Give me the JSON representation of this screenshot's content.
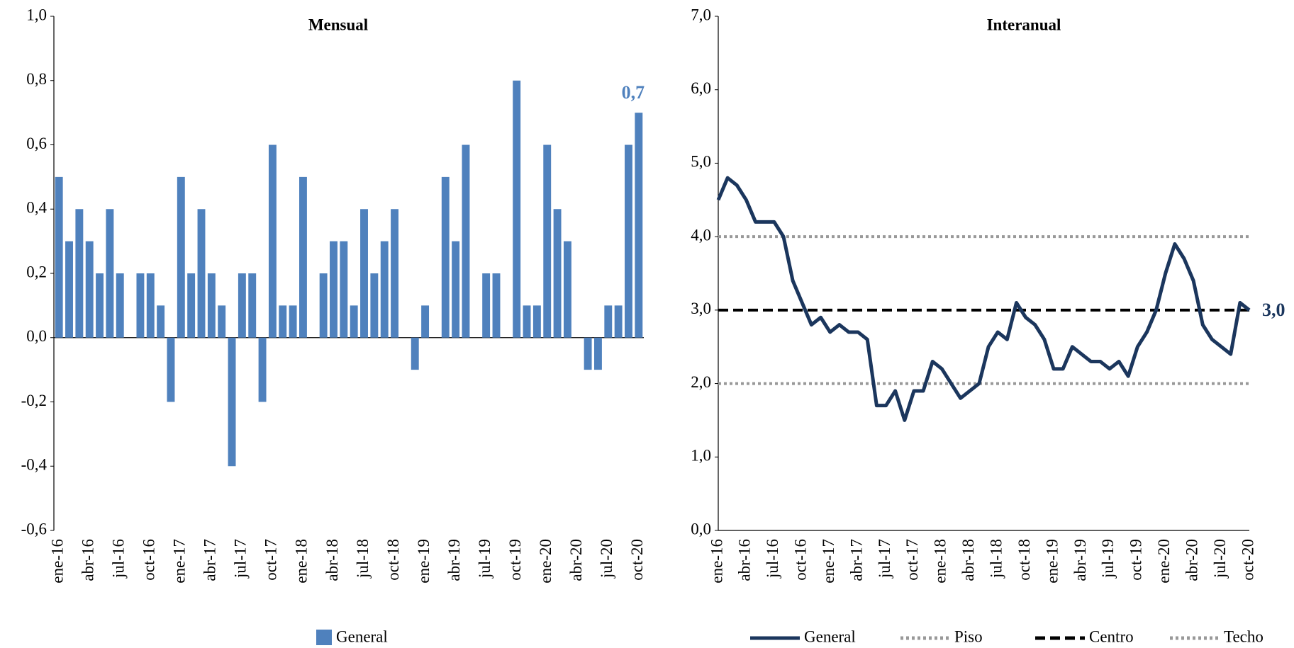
{
  "chart_data": [
    {
      "type": "bar",
      "title": "Mensual",
      "categories": [
        "ene-16",
        null,
        null,
        "abr-16",
        null,
        null,
        "jul-16",
        null,
        null,
        "oct-16",
        null,
        null,
        "ene-17",
        null,
        null,
        "abr-17",
        null,
        null,
        "jul-17",
        null,
        null,
        "oct-17",
        null,
        null,
        "ene-18",
        null,
        null,
        "abr-18",
        null,
        null,
        "jul-18",
        null,
        null,
        "oct-18",
        null,
        null,
        "ene-19",
        null,
        null,
        "abr-19",
        null,
        null,
        "jul-19",
        null,
        null,
        "oct-19",
        null,
        null,
        "ene-20",
        null,
        null,
        "abr-20",
        null,
        null,
        "jul-20",
        null,
        null,
        "oct-20"
      ],
      "series": [
        {
          "name": "General",
          "color": "#4f81bd",
          "values": [
            0.5,
            0.3,
            0.4,
            0.3,
            0.2,
            0.4,
            0.2,
            0,
            0.2,
            0.2,
            0.1,
            -0.2,
            0.5,
            0.2,
            0.4,
            0.2,
            0.1,
            -0.4,
            0.2,
            0.2,
            -0.2,
            0.6,
            0.1,
            0.1,
            0.5,
            0,
            0.2,
            0.3,
            0.3,
            0.1,
            0.4,
            0.2,
            0.3,
            0.4,
            0,
            -0.1,
            0.1,
            0,
            0.5,
            0.3,
            0.6,
            0,
            0.2,
            0.2,
            0,
            0.8,
            0.1,
            0.1,
            0.6,
            0.4,
            0.3,
            0,
            -0.1,
            -0.1,
            0.1,
            0.1,
            0.6,
            0.7
          ],
          "value_labels": [
            null,
            null,
            null,
            null,
            null,
            null,
            null,
            null,
            null,
            null,
            null,
            null,
            null,
            null,
            null,
            null,
            null,
            null,
            null,
            null,
            null,
            null,
            null,
            null,
            null,
            null,
            null,
            null,
            null,
            null,
            null,
            null,
            null,
            null,
            null,
            null,
            null,
            null,
            null,
            null,
            null,
            null,
            null,
            null,
            null,
            null,
            null,
            null,
            null,
            null,
            null,
            null,
            null,
            null,
            null,
            null,
            null,
            "0,7"
          ]
        }
      ],
      "ylim": [
        -0.6,
        1.0
      ],
      "yticks": [
        {
          "value": -0.6,
          "label": "-0,6"
        },
        {
          "value": -0.4,
          "label": "-0,4"
        },
        {
          "value": -0.2,
          "label": "-0,2"
        },
        {
          "value": 0,
          "label": "0,0"
        },
        {
          "value": 0.2,
          "label": "0,2"
        },
        {
          "value": 0.4,
          "label": "0,4"
        },
        {
          "value": 0.6,
          "label": "0,6"
        },
        {
          "value": 0.8,
          "label": "0,8"
        },
        {
          "value": 1.0,
          "label": "1,0"
        }
      ],
      "grid": false
    },
    {
      "type": "line",
      "title": "Interanual",
      "categories": [
        "ene-16",
        null,
        null,
        "abr-16",
        null,
        null,
        "jul-16",
        null,
        null,
        "oct-16",
        null,
        null,
        "ene-17",
        null,
        null,
        "abr-17",
        null,
        null,
        "jul-17",
        null,
        null,
        "oct-17",
        null,
        null,
        "ene-18",
        null,
        null,
        "abr-18",
        null,
        null,
        "jul-18",
        null,
        null,
        "oct-18",
        null,
        null,
        "ene-19",
        null,
        null,
        "abr-19",
        null,
        null,
        "jul-19",
        null,
        null,
        "oct-19",
        null,
        null,
        "ene-20",
        null,
        null,
        "abr-20",
        null,
        null,
        "jul-20",
        null,
        null,
        "oct-20"
      ],
      "series": [
        {
          "name": "General",
          "color": "#1b365d",
          "style": "solid",
          "values": [
            4.5,
            4.8,
            4.7,
            4.5,
            4.2,
            4.2,
            4.2,
            4.0,
            3.4,
            3.1,
            2.8,
            2.9,
            2.7,
            2.8,
            2.7,
            2.7,
            2.6,
            1.7,
            1.7,
            1.9,
            1.5,
            1.9,
            1.9,
            2.3,
            2.2,
            2.0,
            1.8,
            1.9,
            2.0,
            2.5,
            2.7,
            2.6,
            3.1,
            2.9,
            2.8,
            2.6,
            2.2,
            2.2,
            2.5,
            2.4,
            2.3,
            2.3,
            2.2,
            2.3,
            2.1,
            2.5,
            2.7,
            3.0,
            3.5,
            3.9,
            3.7,
            3.4,
            2.8,
            2.6,
            2.5,
            2.4,
            3.1,
            3.0
          ],
          "value_labels": [
            null,
            null,
            null,
            null,
            null,
            null,
            null,
            null,
            null,
            null,
            null,
            null,
            null,
            null,
            null,
            null,
            null,
            null,
            null,
            null,
            null,
            null,
            null,
            null,
            null,
            null,
            null,
            null,
            null,
            null,
            null,
            null,
            null,
            null,
            null,
            null,
            null,
            null,
            null,
            null,
            null,
            null,
            null,
            null,
            null,
            null,
            null,
            null,
            null,
            null,
            null,
            null,
            null,
            null,
            null,
            null,
            null,
            "3,0"
          ]
        }
      ],
      "reference_lines": [
        {
          "name": "Piso",
          "color": "#999999",
          "style": "dotted",
          "value": 2
        },
        {
          "name": "Centro",
          "color": "#000000",
          "style": "dashed",
          "value": 3
        },
        {
          "name": "Techo",
          "color": "#999999",
          "style": "dotted",
          "value": 4
        }
      ],
      "ylim": [
        0,
        7
      ],
      "yticks": [
        {
          "value": 0,
          "label": "0,0"
        },
        {
          "value": 1,
          "label": "1,0"
        },
        {
          "value": 2,
          "label": "2,0"
        },
        {
          "value": 3,
          "label": "3,0"
        },
        {
          "value": 4,
          "label": "4,0"
        },
        {
          "value": 5,
          "label": "5,0"
        },
        {
          "value": 6,
          "label": "6,0"
        },
        {
          "value": 7,
          "label": "7,0"
        }
      ],
      "grid": false
    }
  ]
}
